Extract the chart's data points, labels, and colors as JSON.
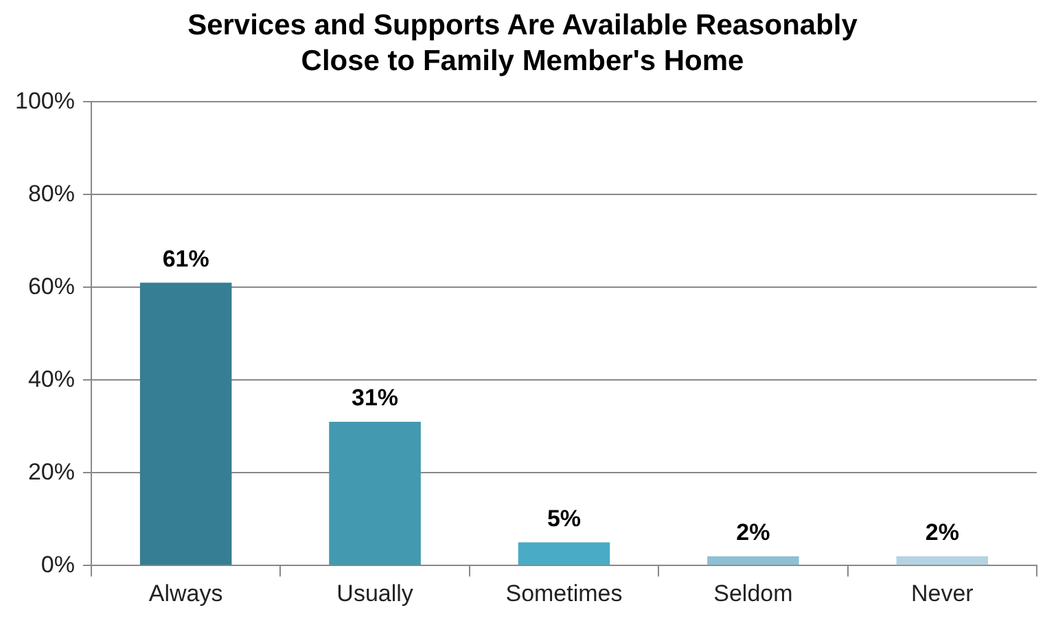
{
  "chart_data": {
    "type": "bar",
    "title": "Services and Supports Are Available Reasonably Close to Family Member's Home",
    "categories": [
      "Always",
      "Usually",
      "Sometimes",
      "Seldom",
      "Never"
    ],
    "values": [
      61,
      31,
      5,
      2,
      2
    ],
    "colors": [
      "#367e93",
      "#4399b0",
      "#4aabc6",
      "#8fc0d4",
      "#b5d3e2"
    ],
    "value_labels": [
      "61%",
      "31%",
      "5%",
      "2%",
      "2%"
    ],
    "ylim": [
      0,
      100
    ],
    "yticks": [
      {
        "value": 0,
        "label": "0%"
      },
      {
        "value": 20,
        "label": "20%"
      },
      {
        "value": 40,
        "label": "40%"
      },
      {
        "value": 60,
        "label": "60%"
      },
      {
        "value": 80,
        "label": "80%"
      },
      {
        "value": 100,
        "label": "100%"
      }
    ],
    "grid": "y",
    "legend": false
  }
}
